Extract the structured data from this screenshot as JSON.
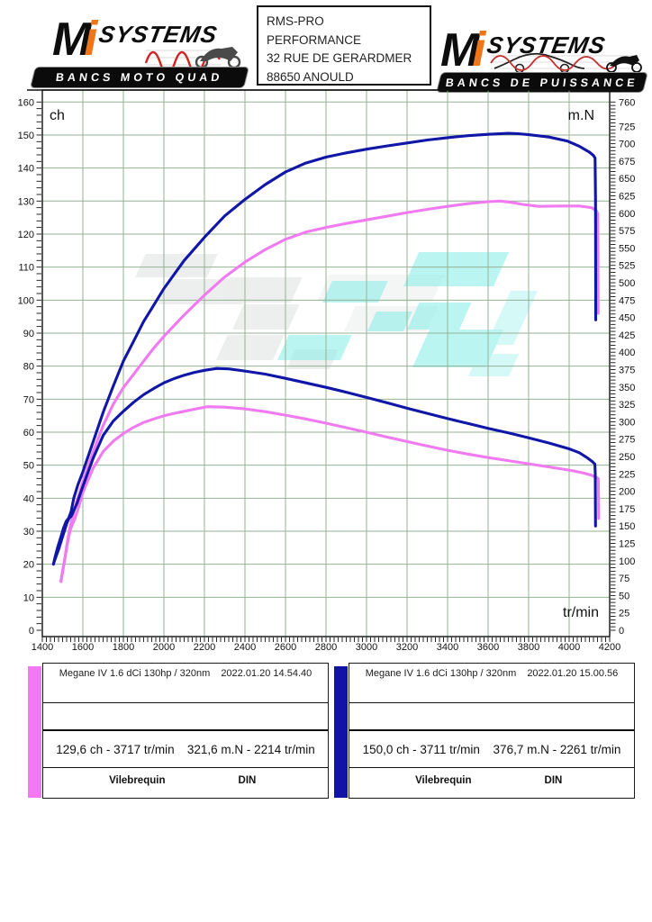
{
  "header": {
    "logo_left": {
      "m": "M",
      "i": "i",
      "systems": "SYSTEMS",
      "banner": "BANCS MOTO QUAD"
    },
    "logo_right": {
      "m": "M",
      "i": "i",
      "systems": "SYSTEMS",
      "banner": "BANCS DE PUISSANCE"
    },
    "address_box": {
      "lines": [
        "RMS-PRO",
        "PERFORMANCE",
        "32 RUE DE GERARDMER",
        "88650 ANOULD"
      ]
    }
  },
  "chart_data": {
    "type": "line",
    "x_axis": {
      "label": "tr/min",
      "min": 1400,
      "max": 4200,
      "tick_step": 200,
      "minor_step": 20
    },
    "y_left": {
      "label": "ch",
      "min": 0,
      "max": 160,
      "tick_step": 10,
      "minor_step": 2
    },
    "y_right": {
      "label": "m.N",
      "min": 0,
      "max": 760,
      "tick_step": 25,
      "minor_step": 5
    },
    "grid_color": "#95b295",
    "axis_color": "#111111",
    "watermark_colors": {
      "gray": "#ebecec",
      "gray_faint": "#f3f4f4",
      "cyan": "#8eefe9",
      "cyan_light": "#b9f5f1"
    },
    "series": [
      {
        "name": "power-run1-pink",
        "axis": "left",
        "unit": "ch",
        "color": "#f07af0",
        "points": [
          [
            1492,
            15
          ],
          [
            1500,
            18
          ],
          [
            1512,
            22
          ],
          [
            1524,
            27
          ],
          [
            1536,
            31
          ],
          [
            1548,
            34
          ],
          [
            1562,
            37.5
          ],
          [
            1580,
            41
          ],
          [
            1600,
            45
          ],
          [
            1650,
            54
          ],
          [
            1700,
            62
          ],
          [
            1750,
            68.5
          ],
          [
            1800,
            73.5
          ],
          [
            1850,
            77.5
          ],
          [
            1900,
            81.5
          ],
          [
            1950,
            85.5
          ],
          [
            2000,
            89
          ],
          [
            2100,
            95.5
          ],
          [
            2200,
            101.5
          ],
          [
            2300,
            107
          ],
          [
            2400,
            111.5
          ],
          [
            2500,
            115.3
          ],
          [
            2600,
            118.4
          ],
          [
            2700,
            120.6
          ],
          [
            2800,
            122
          ],
          [
            2900,
            123.2
          ],
          [
            3000,
            124.3
          ],
          [
            3100,
            125.4
          ],
          [
            3200,
            126.5
          ],
          [
            3300,
            127.5
          ],
          [
            3400,
            128.4
          ],
          [
            3500,
            129.2
          ],
          [
            3600,
            129.8
          ],
          [
            3660,
            130
          ],
          [
            3717,
            129.6
          ],
          [
            3770,
            129
          ],
          [
            3850,
            128.4
          ],
          [
            3950,
            128.5
          ],
          [
            4050,
            128.5
          ],
          [
            4110,
            128
          ],
          [
            4135,
            127
          ],
          [
            4141,
            126.2
          ],
          [
            4142,
            115
          ],
          [
            4143,
            96
          ]
        ]
      },
      {
        "name": "torque-run1-pink",
        "axis": "right",
        "unit": "m.N",
        "color": "#f07af0",
        "points": [
          [
            1492,
            70
          ],
          [
            1498,
            80
          ],
          [
            1508,
            97
          ],
          [
            1518,
            115
          ],
          [
            1528,
            131
          ],
          [
            1538,
            144
          ],
          [
            1548,
            152
          ],
          [
            1560,
            160
          ],
          [
            1580,
            178
          ],
          [
            1600,
            198
          ],
          [
            1650,
            233
          ],
          [
            1700,
            257
          ],
          [
            1750,
            272
          ],
          [
            1800,
            283
          ],
          [
            1850,
            292
          ],
          [
            1900,
            299
          ],
          [
            1950,
            304
          ],
          [
            2000,
            308.5
          ],
          [
            2050,
            312
          ],
          [
            2100,
            315
          ],
          [
            2150,
            318
          ],
          [
            2214,
            321.6
          ],
          [
            2300,
            321
          ],
          [
            2400,
            318.5
          ],
          [
            2500,
            314.5
          ],
          [
            2600,
            309.5
          ],
          [
            2700,
            304
          ],
          [
            2800,
            298
          ],
          [
            2900,
            291.5
          ],
          [
            3000,
            285
          ],
          [
            3100,
            278
          ],
          [
            3200,
            271.5
          ],
          [
            3300,
            265
          ],
          [
            3400,
            259
          ],
          [
            3500,
            253.5
          ],
          [
            3600,
            248.5
          ],
          [
            3700,
            244
          ],
          [
            3800,
            239.5
          ],
          [
            3900,
            235
          ],
          [
            4000,
            230.5
          ],
          [
            4060,
            227
          ],
          [
            4110,
            223
          ],
          [
            4138,
            219.5
          ],
          [
            4144,
            218
          ],
          [
            4145,
            195
          ],
          [
            4146,
            161
          ]
        ]
      },
      {
        "name": "power-run2-blue",
        "axis": "left",
        "unit": "ch",
        "color": "#1016a5",
        "points": [
          [
            1455,
            20
          ],
          [
            1462,
            22
          ],
          [
            1475,
            25
          ],
          [
            1490,
            28
          ],
          [
            1505,
            31
          ],
          [
            1518,
            33
          ],
          [
            1530,
            34
          ],
          [
            1542,
            36
          ],
          [
            1555,
            40
          ],
          [
            1575,
            44
          ],
          [
            1600,
            48
          ],
          [
            1650,
            57
          ],
          [
            1700,
            66
          ],
          [
            1750,
            74
          ],
          [
            1800,
            81.5
          ],
          [
            1850,
            87.5
          ],
          [
            1900,
            93.5
          ],
          [
            1950,
            98.5
          ],
          [
            2000,
            103.5
          ],
          [
            2100,
            112
          ],
          [
            2200,
            119
          ],
          [
            2300,
            125.5
          ],
          [
            2400,
            130.5
          ],
          [
            2500,
            135
          ],
          [
            2600,
            138.8
          ],
          [
            2700,
            141.5
          ],
          [
            2800,
            143.3
          ],
          [
            2900,
            144.6
          ],
          [
            3000,
            145.7
          ],
          [
            3100,
            146.7
          ],
          [
            3200,
            147.6
          ],
          [
            3300,
            148.5
          ],
          [
            3400,
            149.2
          ],
          [
            3500,
            149.8
          ],
          [
            3600,
            150.2
          ],
          [
            3700,
            150.5
          ],
          [
            3750,
            150.4
          ],
          [
            3800,
            150.1
          ],
          [
            3900,
            149.4
          ],
          [
            3990,
            148.2
          ],
          [
            4050,
            146.6
          ],
          [
            4100,
            144.8
          ],
          [
            4120,
            143.8
          ],
          [
            4128,
            143
          ],
          [
            4130,
            130
          ],
          [
            4131,
            94
          ]
        ]
      },
      {
        "name": "torque-run2-blue",
        "axis": "right",
        "unit": "m.N",
        "color": "#1016a5",
        "points": [
          [
            1455,
            96
          ],
          [
            1465,
            104
          ],
          [
            1480,
            116
          ],
          [
            1495,
            130
          ],
          [
            1510,
            144
          ],
          [
            1522,
            155
          ],
          [
            1532,
            161
          ],
          [
            1542,
            164
          ],
          [
            1552,
            170
          ],
          [
            1570,
            182
          ],
          [
            1600,
            207
          ],
          [
            1650,
            247
          ],
          [
            1700,
            280
          ],
          [
            1750,
            301
          ],
          [
            1800,
            315
          ],
          [
            1850,
            328
          ],
          [
            1900,
            339
          ],
          [
            1950,
            348
          ],
          [
            2000,
            356
          ],
          [
            2050,
            362
          ],
          [
            2100,
            367
          ],
          [
            2150,
            371
          ],
          [
            2200,
            374
          ],
          [
            2261,
            376.7
          ],
          [
            2320,
            376
          ],
          [
            2400,
            373
          ],
          [
            2500,
            368.5
          ],
          [
            2600,
            362.5
          ],
          [
            2700,
            356
          ],
          [
            2800,
            349.5
          ],
          [
            2900,
            342.5
          ],
          [
            3000,
            335
          ],
          [
            3100,
            327.5
          ],
          [
            3200,
            319.5
          ],
          [
            3300,
            312
          ],
          [
            3400,
            304.5
          ],
          [
            3500,
            297.5
          ],
          [
            3600,
            290.5
          ],
          [
            3700,
            284
          ],
          [
            3800,
            277
          ],
          [
            3900,
            269.5
          ],
          [
            4000,
            261
          ],
          [
            4050,
            255.5
          ],
          [
            4090,
            248
          ],
          [
            4115,
            242.5
          ],
          [
            4127,
            239
          ],
          [
            4129,
            225
          ],
          [
            4130,
            150
          ]
        ]
      }
    ],
    "title": "",
    "legend_position": "bottom"
  },
  "legends": [
    {
      "color": "#f279f2",
      "title": "Megane IV 1.6 dCi 130hp / 320nm",
      "datetime": "2022.01.20 14.54.40",
      "power_peak": "129,6 ch - 3717 tr/min",
      "torque_peak": "321,6 m.N - 2214 tr/min",
      "shaft": "Vilebrequin",
      "norm": "DIN"
    },
    {
      "color": "#1113a6",
      "title": "Megane IV 1.6 dCi 130hp / 320nm",
      "datetime": "2022.01.20 15.00.56",
      "power_peak": "150,0 ch - 3711 tr/min",
      "torque_peak": "376,7 m.N - 2261 tr/min",
      "shaft": "Vilebrequin",
      "norm": "DIN"
    }
  ]
}
